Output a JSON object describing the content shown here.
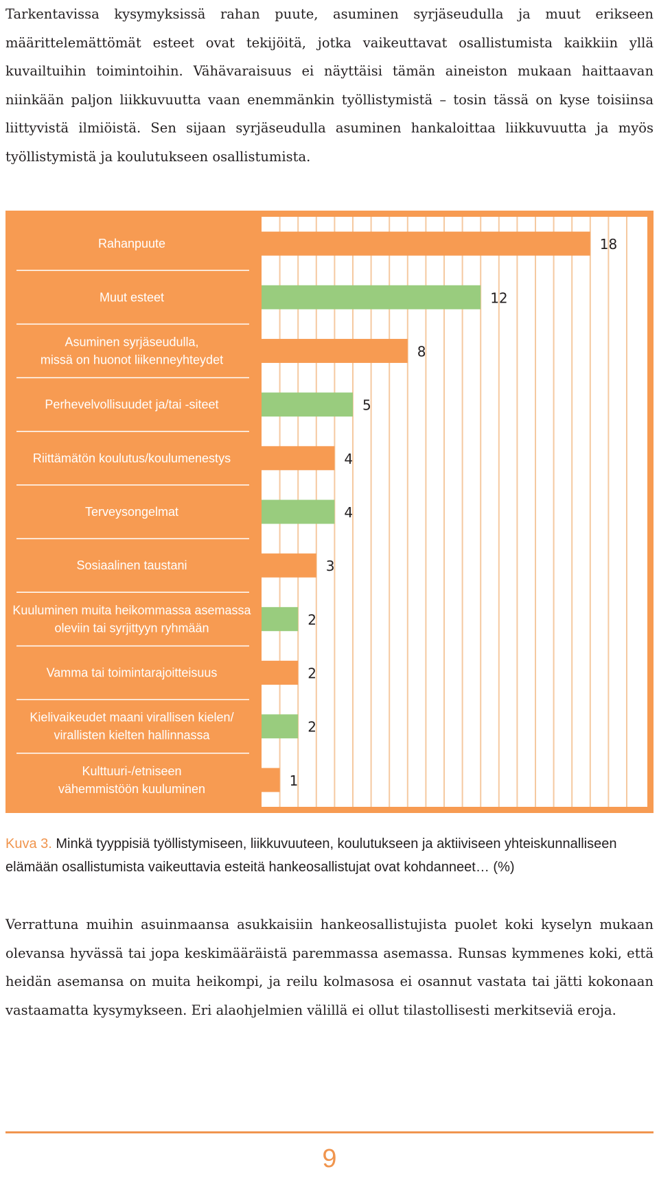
{
  "intro_text": "Tarkentavissa kysymyksissä rahan puute, asuminen syrjäseudulla ja muut erikseen määrittelemättömät esteet ovat tekijöitä, jotka vaikeuttavat osallistumista kaikkiin yllä kuvailtuihin toimintoihin. Vähävaraisuus ei näyttäisi tämän aineiston mukaan haittaavan niinkään paljon liikkuvuutta vaan enemmänkin työllistymistä – tosin tässä on kyse toisiinsa liittyvistä ilmiöistä. Sen sijaan syrjäseudulla asuminen hankaloittaa liikkuvuutta ja myös työllistymistä ja koulutukseen osallistumista.",
  "chart_data": {
    "type": "bar",
    "orientation": "horizontal",
    "categories": [
      [
        "Rahanpuute"
      ],
      [
        "Muut esteet"
      ],
      [
        "Asuminen syrjäseudulla,",
        "missä on huonot liikenneyhteydet"
      ],
      [
        "Perhevelvollisuudet ja/tai -siteet"
      ],
      [
        "Riittämätön koulutus/koulumenestys"
      ],
      [
        "Terveysongelmat"
      ],
      [
        "Sosiaalinen taustani"
      ],
      [
        "Kuuluminen muita heikommassa asemassa",
        "oleviin tai syrjittyyn ryhmään"
      ],
      [
        "Vamma tai toimintarajoitteisuus"
      ],
      [
        "Kielivaikeudet maani virallisen kielen/",
        "virallisten kielten hallinnassa"
      ],
      [
        "Kulttuuri-/etniseen",
        "vähemmistöön kuuluminen"
      ]
    ],
    "values": [
      18,
      12,
      8,
      5,
      4,
      4,
      3,
      2,
      2,
      2,
      1
    ],
    "value_labels": [
      "18",
      "12",
      "8",
      "5",
      "4",
      "4",
      "3",
      "2",
      "2",
      "2",
      "1"
    ],
    "bar_colors": [
      "#f79b52",
      "#99cc7e",
      "#f79b52",
      "#99cc7e",
      "#f79b52",
      "#99cc7e",
      "#f79b52",
      "#99cc7e",
      "#f79b52",
      "#99cc7e",
      "#f79b52"
    ],
    "xlim": [
      0,
      20
    ],
    "grid": true,
    "axis_ticks_shown": false,
    "colors": {
      "panel": "#f79b52",
      "orange_bar": "#f79b52",
      "green_bar": "#99cc7e",
      "grid_line": "#f5c9a0",
      "frame": "#f79b52",
      "separator": "#ffffff"
    }
  },
  "caption": {
    "label": "Kuva 3.",
    "text": " Minkä tyyppisiä työllistymiseen, liikkuvuuteen, koulutukseen ja aktiiviseen yhteiskunnalliseen elämään osallistumista vaikeuttavia esteitä hankeosallistujat ovat kohdanneet… (%)"
  },
  "body_text": "Verrattuna muihin asuinmaansa asukkaisiin hankeosallistujista puolet koki kyselyn mukaan olevansa hyvässä tai jopa keskimääräistä paremmassa asemassa. Runsas kymmenes koki, että heidän asemansa on muita heikompi, ja reilu kolmasosa ei osannut vastata tai jätti kokonaan vastaamatta kysymykseen. Eri alaohjelmien välillä ei ollut tilastollisesti merkitseviä eroja.",
  "page_number": "9"
}
